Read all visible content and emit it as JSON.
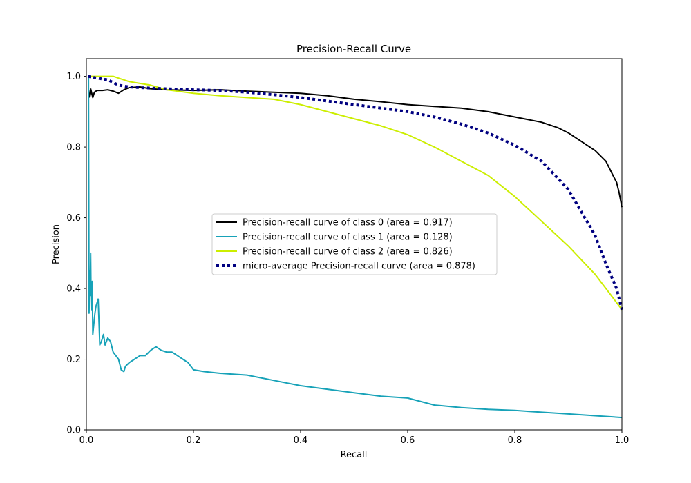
{
  "chart_data": {
    "type": "line",
    "title": "Precision-Recall Curve",
    "xlabel": "Recall",
    "ylabel": "Precision",
    "xlim": [
      0,
      1
    ],
    "ylim": [
      0,
      1.05
    ],
    "xticks": [
      "0.0",
      "0.2",
      "0.4",
      "0.6",
      "0.8",
      "1.0"
    ],
    "yticks": [
      "0.0",
      "0.2",
      "0.4",
      "0.6",
      "0.8",
      "1.0"
    ],
    "grid": false,
    "legend_placement": "center",
    "series": [
      {
        "name": "Precision-recall curve of class 0 (area = 0.917)",
        "color": "#000000",
        "style": "solid",
        "x": [
          0.005,
          0.008,
          0.012,
          0.015,
          0.02,
          0.03,
          0.04,
          0.05,
          0.06,
          0.07,
          0.08,
          0.1,
          0.12,
          0.15,
          0.2,
          0.25,
          0.3,
          0.35,
          0.4,
          0.45,
          0.5,
          0.55,
          0.6,
          0.65,
          0.7,
          0.75,
          0.8,
          0.85,
          0.88,
          0.9,
          0.92,
          0.95,
          0.97,
          0.98,
          0.99,
          0.995,
          1.0
        ],
        "y": [
          0.94,
          0.965,
          0.94,
          0.955,
          0.96,
          0.96,
          0.962,
          0.958,
          0.952,
          0.962,
          0.968,
          0.97,
          0.965,
          0.962,
          0.96,
          0.962,
          0.958,
          0.955,
          0.952,
          0.945,
          0.935,
          0.928,
          0.92,
          0.915,
          0.91,
          0.9,
          0.885,
          0.87,
          0.855,
          0.84,
          0.82,
          0.79,
          0.76,
          0.73,
          0.7,
          0.67,
          0.63
        ]
      },
      {
        "name": "Precision-recall curve of class 1 (area = 0.128)",
        "color": "#17a2b8",
        "style": "solid",
        "x": [
          0.004,
          0.005,
          0.006,
          0.007,
          0.008,
          0.009,
          0.01,
          0.011,
          0.012,
          0.014,
          0.016,
          0.018,
          0.02,
          0.022,
          0.025,
          0.028,
          0.03,
          0.032,
          0.035,
          0.04,
          0.045,
          0.05,
          0.055,
          0.06,
          0.065,
          0.07,
          0.073,
          0.08,
          0.09,
          0.1,
          0.11,
          0.12,
          0.13,
          0.14,
          0.15,
          0.16,
          0.17,
          0.18,
          0.19,
          0.2,
          0.22,
          0.25,
          0.3,
          0.35,
          0.4,
          0.45,
          0.5,
          0.55,
          0.6,
          0.65,
          0.7,
          0.75,
          0.8,
          0.85,
          0.9,
          0.95,
          1.0
        ],
        "y": [
          1.0,
          0.33,
          0.45,
          0.38,
          0.5,
          0.34,
          0.38,
          0.42,
          0.27,
          0.3,
          0.33,
          0.35,
          0.36,
          0.37,
          0.24,
          0.25,
          0.26,
          0.27,
          0.24,
          0.26,
          0.25,
          0.22,
          0.21,
          0.2,
          0.17,
          0.165,
          0.18,
          0.19,
          0.2,
          0.21,
          0.21,
          0.225,
          0.235,
          0.225,
          0.22,
          0.22,
          0.21,
          0.2,
          0.19,
          0.17,
          0.165,
          0.16,
          0.155,
          0.14,
          0.125,
          0.115,
          0.105,
          0.095,
          0.09,
          0.07,
          0.063,
          0.058,
          0.055,
          0.05,
          0.045,
          0.04,
          0.035
        ]
      },
      {
        "name": "Precision-recall curve of class 2 (area = 0.826)",
        "color": "#ccee00",
        "style": "solid",
        "x": [
          0.003,
          0.02,
          0.05,
          0.06,
          0.08,
          0.1,
          0.12,
          0.15,
          0.2,
          0.25,
          0.3,
          0.35,
          0.4,
          0.45,
          0.5,
          0.55,
          0.6,
          0.65,
          0.7,
          0.75,
          0.8,
          0.85,
          0.9,
          0.95,
          0.97,
          0.99,
          1.0
        ],
        "y": [
          1.0,
          1.0,
          1.0,
          0.995,
          0.985,
          0.98,
          0.975,
          0.962,
          0.952,
          0.945,
          0.94,
          0.935,
          0.92,
          0.9,
          0.88,
          0.86,
          0.835,
          0.8,
          0.76,
          0.72,
          0.66,
          0.59,
          0.52,
          0.44,
          0.4,
          0.36,
          0.34
        ]
      },
      {
        "name": "micro-average Precision-recall curve (area = 0.878)",
        "color": "#000080",
        "style": "dotted",
        "x": [
          0.003,
          0.02,
          0.04,
          0.06,
          0.08,
          0.1,
          0.15,
          0.2,
          0.25,
          0.3,
          0.35,
          0.4,
          0.45,
          0.5,
          0.55,
          0.6,
          0.65,
          0.7,
          0.75,
          0.8,
          0.85,
          0.9,
          0.95,
          0.97,
          0.99,
          1.0
        ],
        "y": [
          1.0,
          0.995,
          0.99,
          0.975,
          0.97,
          0.968,
          0.965,
          0.962,
          0.96,
          0.955,
          0.948,
          0.94,
          0.93,
          0.92,
          0.91,
          0.9,
          0.885,
          0.865,
          0.84,
          0.805,
          0.76,
          0.68,
          0.55,
          0.47,
          0.4,
          0.34
        ]
      }
    ]
  }
}
